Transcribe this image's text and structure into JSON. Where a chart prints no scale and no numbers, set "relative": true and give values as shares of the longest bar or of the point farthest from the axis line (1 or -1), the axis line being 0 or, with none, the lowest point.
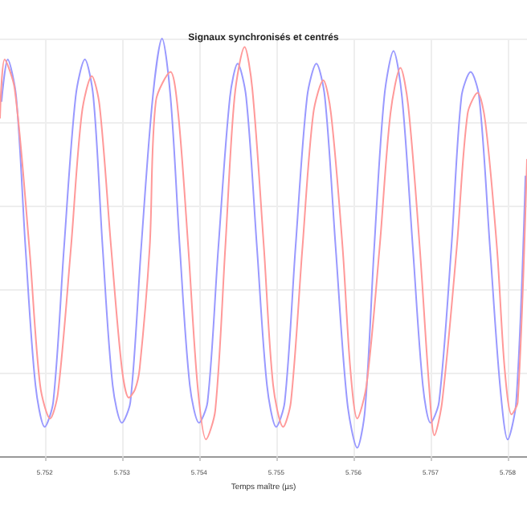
{
  "chart_data": {
    "type": "line",
    "title": "Signaux synchronisés et centrés",
    "xlabel": "Temps maître (µs)",
    "relative": true,
    "grid": true,
    "marker": "none",
    "line_style": "solid",
    "tick_labels": "x",
    "xlim": [
      5.75142,
      5.75825
    ],
    "xticks": [
      5.752,
      5.753,
      5.754,
      5.755,
      5.756,
      5.757,
      5.758
    ],
    "series": [
      {
        "color": "#9999ff",
        "x": [
          5.75144,
          5.75152,
          5.75163,
          5.75175,
          5.75188,
          5.752,
          5.75211,
          5.75225,
          5.7524,
          5.75252,
          5.75263,
          5.75275,
          5.75288,
          5.753,
          5.75311,
          5.75325,
          5.7534,
          5.75352,
          5.75363,
          5.75375,
          5.75388,
          5.754,
          5.75411,
          5.75425,
          5.7544,
          5.7545,
          5.75461,
          5.75475,
          5.75488,
          5.755,
          5.75511,
          5.75525,
          5.7554,
          5.75552,
          5.75563,
          5.75577,
          5.75592,
          5.75605,
          5.75615,
          5.75627,
          5.7564,
          5.75652,
          5.75663,
          5.75677,
          5.7569,
          5.757,
          5.75711,
          5.75727,
          5.7574,
          5.75752,
          5.75763,
          5.75777,
          5.7579,
          5.758,
          5.75811,
          5.75823
        ],
        "values": [
          0.85,
          0.95,
          0.86,
          0.5,
          0.17,
          0.07,
          0.13,
          0.5,
          0.86,
          0.95,
          0.86,
          0.5,
          0.17,
          0.08,
          0.13,
          0.5,
          0.86,
          1.0,
          0.86,
          0.5,
          0.17,
          0.08,
          0.13,
          0.5,
          0.86,
          0.94,
          0.86,
          0.5,
          0.17,
          0.07,
          0.13,
          0.5,
          0.86,
          0.94,
          0.86,
          0.5,
          0.13,
          0.02,
          0.11,
          0.5,
          0.86,
          0.97,
          0.86,
          0.5,
          0.17,
          0.08,
          0.13,
          0.5,
          0.86,
          0.92,
          0.86,
          0.5,
          0.17,
          0.04,
          0.13,
          0.67
        ]
      },
      {
        "color": "#ff9999",
        "x": [
          5.75142,
          5.75148,
          5.75161,
          5.7518,
          5.75194,
          5.75207,
          5.75217,
          5.75234,
          5.75248,
          5.75261,
          5.75271,
          5.75286,
          5.753,
          5.75309,
          5.75317,
          5.75323,
          5.75336,
          5.75344,
          5.75363,
          5.75373,
          5.75386,
          5.75398,
          5.75409,
          5.75421,
          5.75434,
          5.75446,
          5.75459,
          5.75469,
          5.75484,
          5.75496,
          5.75509,
          5.75519,
          5.75534,
          5.75548,
          5.75561,
          5.75571,
          5.75586,
          5.75596,
          5.75605,
          5.75617,
          5.75634,
          5.75648,
          5.75661,
          5.75671,
          5.75686,
          5.75698,
          5.75705,
          5.75715,
          5.75734,
          5.75748,
          5.75761,
          5.75771,
          5.75786,
          5.75796,
          5.75805,
          5.75813,
          5.75825
        ],
        "values": [
          0.81,
          0.95,
          0.88,
          0.5,
          0.17,
          0.09,
          0.15,
          0.5,
          0.82,
          0.91,
          0.84,
          0.5,
          0.21,
          0.14,
          0.16,
          0.21,
          0.5,
          0.85,
          0.92,
          0.82,
          0.5,
          0.17,
          0.04,
          0.11,
          0.5,
          0.86,
          0.98,
          0.88,
          0.5,
          0.17,
          0.07,
          0.13,
          0.5,
          0.82,
          0.9,
          0.82,
          0.5,
          0.21,
          0.09,
          0.17,
          0.5,
          0.82,
          0.93,
          0.84,
          0.5,
          0.17,
          0.05,
          0.13,
          0.5,
          0.82,
          0.87,
          0.8,
          0.5,
          0.21,
          0.1,
          0.13,
          0.71
        ]
      }
    ]
  }
}
